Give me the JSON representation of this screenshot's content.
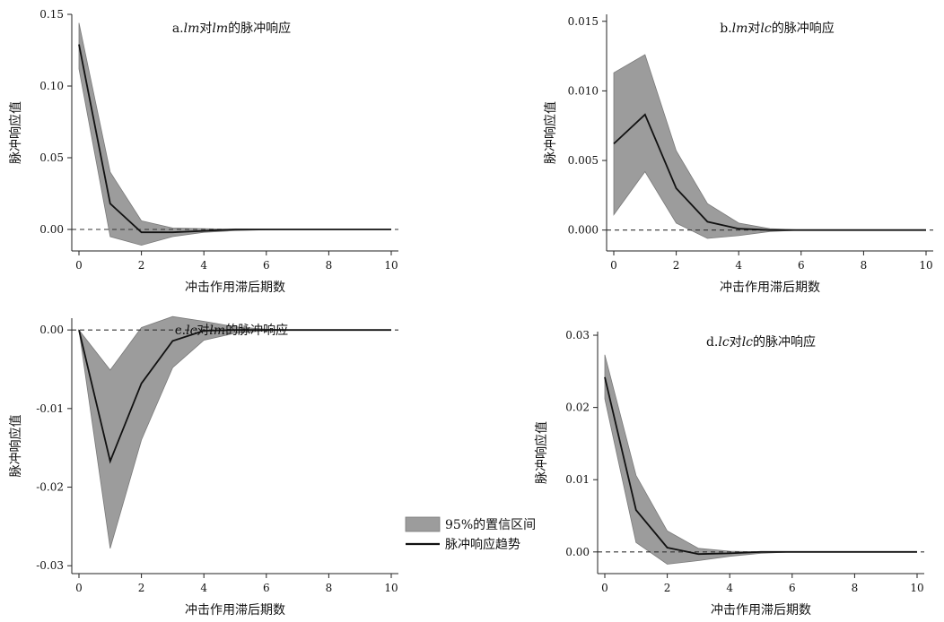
{
  "chart_data": [
    {
      "type": "area",
      "panel": "a",
      "title_prefix": "a.",
      "title_parts": [
        {
          "text": "a.",
          "italic": false
        },
        {
          "text": "lm",
          "italic": true
        },
        {
          "text": "对",
          "italic": false
        },
        {
          "text": "lm",
          "italic": true
        },
        {
          "text": "的脉冲响应",
          "italic": false
        }
      ],
      "xlabel": "冲击作用滞后期数",
      "ylabel": "脉冲响应值",
      "xlim": [
        0,
        10
      ],
      "ylim": [
        -0.015,
        0.15
      ],
      "xticks": [
        0,
        2,
        4,
        6,
        8,
        10
      ],
      "xtick_labels": [
        "0",
        "2",
        "4",
        "6",
        "8",
        "10"
      ],
      "yticks": [
        0.0,
        0.05,
        0.1,
        0.15
      ],
      "ytick_labels": [
        "0.00",
        "0.05",
        "0.10",
        "0.15"
      ],
      "x": [
        0,
        1,
        2,
        3,
        4,
        5,
        6,
        7,
        8,
        9,
        10
      ],
      "series": [
        {
          "name": "脉冲响应趋势",
          "values": [
            0.129,
            0.018,
            -0.002,
            -0.002,
            -0.001,
            0,
            0,
            0,
            0,
            0,
            0
          ]
        },
        {
          "name": "95%置信区间上限",
          "values": [
            0.144,
            0.04,
            0.006,
            0.001,
            0.0005,
            0.0002,
            0,
            0,
            0,
            0,
            0
          ]
        },
        {
          "name": "95%置信区间下限",
          "values": [
            0.112,
            -0.005,
            -0.011,
            -0.005,
            -0.002,
            -0.0008,
            -0.0002,
            0,
            0,
            0,
            0
          ]
        }
      ]
    },
    {
      "type": "area",
      "panel": "b",
      "title_parts": [
        {
          "text": "b.",
          "italic": false
        },
        {
          "text": "lm",
          "italic": true
        },
        {
          "text": "对",
          "italic": false
        },
        {
          "text": "lc",
          "italic": true
        },
        {
          "text": "的脉冲响应",
          "italic": false
        }
      ],
      "xlabel": "冲击作用滞后期数",
      "ylabel": "脉冲响应值",
      "xlim": [
        0,
        10
      ],
      "ylim": [
        -0.0015,
        0.0155
      ],
      "xticks": [
        0,
        2,
        4,
        6,
        8,
        10
      ],
      "xtick_labels": [
        "0",
        "2",
        "4",
        "6",
        "8",
        "10"
      ],
      "yticks": [
        0.0,
        0.005,
        0.01,
        0.015
      ],
      "ytick_labels": [
        "0.000",
        "0.005",
        "0.010",
        "0.015"
      ],
      "x": [
        0,
        1,
        2,
        3,
        4,
        5,
        6,
        7,
        8,
        9,
        10
      ],
      "series": [
        {
          "name": "脉冲响应趋势",
          "values": [
            0.0062,
            0.0083,
            0.003,
            0.0006,
            0.0001,
            0,
            0,
            0,
            0,
            0,
            0
          ]
        },
        {
          "name": "95%置信区间上限",
          "values": [
            0.0113,
            0.0126,
            0.0057,
            0.0019,
            0.0005,
            0.0001,
            0,
            0,
            0,
            0,
            0
          ]
        },
        {
          "name": "95%置信区间下限",
          "values": [
            0.0011,
            0.0042,
            0.0005,
            -0.0006,
            -0.0004,
            -0.0001,
            0,
            0,
            0,
            0,
            0
          ]
        }
      ]
    },
    {
      "type": "area",
      "panel": "c",
      "title_parts": [
        {
          "text": "c.",
          "italic": false
        },
        {
          "text": "lc",
          "italic": true
        },
        {
          "text": "对",
          "italic": false
        },
        {
          "text": "lm",
          "italic": true
        },
        {
          "text": "的脉冲响应",
          "italic": false
        }
      ],
      "xlabel": "冲击作用滞后期数",
      "ylabel": "脉冲响应值",
      "xlim": [
        0,
        10
      ],
      "ylim": [
        -0.031,
        0.0015
      ],
      "xticks": [
        0,
        2,
        4,
        6,
        8,
        10
      ],
      "xtick_labels": [
        "0",
        "2",
        "4",
        "6",
        "8",
        "10"
      ],
      "yticks": [
        0.0,
        -0.01,
        -0.02,
        -0.03
      ],
      "ytick_labels": [
        "0.00",
        "-0.01",
        "-0.02",
        "-0.03"
      ],
      "x": [
        0,
        1,
        2,
        3,
        4,
        5,
        6,
        7,
        8,
        9,
        10
      ],
      "series": [
        {
          "name": "脉冲响应趋势",
          "values": [
            0,
            -0.0167,
            -0.0068,
            -0.0014,
            -0.0001,
            0,
            0,
            0,
            0,
            0,
            0
          ]
        },
        {
          "name": "95%置信区间上限",
          "values": [
            0,
            -0.0051,
            0.0003,
            0.0017,
            0.0011,
            0.0004,
            0.0001,
            0,
            0,
            0,
            0
          ]
        },
        {
          "name": "95%置信区间下限",
          "values": [
            0,
            -0.0278,
            -0.014,
            -0.0048,
            -0.0013,
            -0.0004,
            -0.0001,
            0,
            0,
            0,
            0
          ]
        }
      ]
    },
    {
      "type": "area",
      "panel": "d",
      "title_parts": [
        {
          "text": "d.",
          "italic": false
        },
        {
          "text": "lc",
          "italic": true
        },
        {
          "text": "对",
          "italic": false
        },
        {
          "text": "lc",
          "italic": true
        },
        {
          "text": "的脉冲响应",
          "italic": false
        }
      ],
      "xlabel": "冲击作用滞后期数",
      "ylabel": "脉冲响应值",
      "xlim": [
        0,
        10
      ],
      "ylim": [
        -0.003,
        0.0305
      ],
      "xticks": [
        0,
        2,
        4,
        6,
        8,
        10
      ],
      "xtick_labels": [
        "0",
        "2",
        "4",
        "6",
        "8",
        "10"
      ],
      "yticks": [
        0.0,
        0.01,
        0.02,
        0.03
      ],
      "ytick_labels": [
        "0.00",
        "0.01",
        "0.02",
        "0.03"
      ],
      "x": [
        0,
        1,
        2,
        3,
        4,
        5,
        6,
        7,
        8,
        9,
        10
      ],
      "series": [
        {
          "name": "脉冲响应趋势",
          "values": [
            0.0242,
            0.0058,
            0.0006,
            -0.0003,
            -0.0002,
            0,
            0,
            0,
            0,
            0,
            0
          ]
        },
        {
          "name": "95%置信区间上限",
          "values": [
            0.0273,
            0.0106,
            0.0029,
            0.0005,
            0.0001,
            0,
            0,
            0,
            0,
            0,
            0
          ]
        },
        {
          "name": "95%置信区间下限",
          "values": [
            0.0212,
            0.0013,
            -0.0017,
            -0.0012,
            -0.0006,
            -0.0002,
            0,
            0,
            0,
            0,
            0
          ]
        }
      ]
    }
  ],
  "legend": {
    "items": [
      {
        "label": "95%的置信区间",
        "kind": "band"
      },
      {
        "label": "脉冲响应趋势",
        "kind": "line"
      }
    ]
  },
  "colors": {
    "band_fill": "#9c9c9c",
    "band_edge": "#7a7a7a",
    "line": "#111111",
    "axis": "#222222",
    "zero_line": "#333333"
  }
}
